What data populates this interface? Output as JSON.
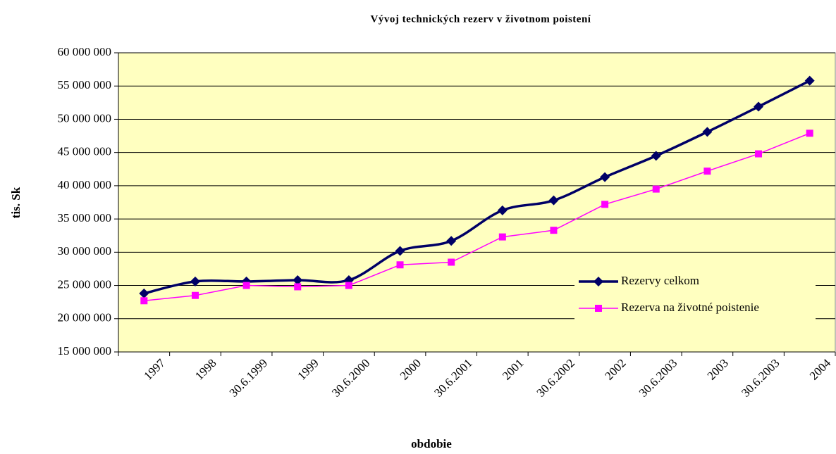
{
  "chart_data": {
    "type": "line",
    "title": "Vývoj technických rezerv v životnom poistení",
    "x_label": "obdobie",
    "y_label": "tis. Sk",
    "categories": [
      "1997",
      "1998",
      "30.6.1999",
      "1999",
      "30.6.2000",
      "2000",
      "30.6.2001",
      "2001",
      "30.6.2002",
      "2002",
      "30.6.2003",
      "2003",
      "30.6.2003",
      "2004"
    ],
    "series": [
      {
        "name": "Rezervy celkom",
        "color": "#000066",
        "marker": "diamond",
        "smooth": true,
        "values": [
          23800000,
          25600000,
          25600000,
          25800000,
          25800000,
          30200000,
          31700000,
          36300000,
          37800000,
          41300000,
          44500000,
          48100000,
          51900000,
          55800000
        ]
      },
      {
        "name": "Rezerva na životné poistenie",
        "color": "#ff00ff",
        "marker": "square",
        "smooth": false,
        "values": [
          22700000,
          23500000,
          25000000,
          24800000,
          25000000,
          28100000,
          28500000,
          32300000,
          33300000,
          37200000,
          39500000,
          42200000,
          44800000,
          47900000
        ]
      }
    ],
    "ylim": [
      15000000,
      60000000
    ],
    "yticks": [
      {
        "value": 15000000,
        "label": "15 000 000"
      },
      {
        "value": 20000000,
        "label": "20 000 000"
      },
      {
        "value": 25000000,
        "label": "25 000 000"
      },
      {
        "value": 30000000,
        "label": "30 000 000"
      },
      {
        "value": 35000000,
        "label": "35 000 000"
      },
      {
        "value": 40000000,
        "label": "40 000 000"
      },
      {
        "value": 45000000,
        "label": "45 000 000"
      },
      {
        "value": 50000000,
        "label": "50 000 000"
      },
      {
        "value": 55000000,
        "label": "55 000 000"
      },
      {
        "value": 60000000,
        "label": "60 000 000"
      }
    ],
    "grid": true,
    "legend": "right",
    "plot_background": "#ffffc0"
  }
}
